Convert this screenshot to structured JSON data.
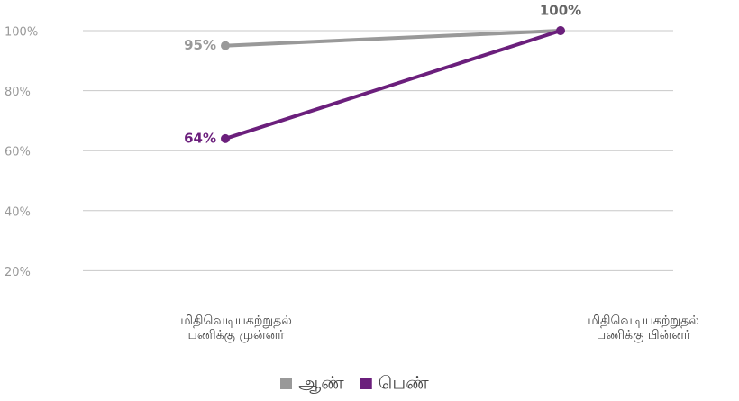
{
  "chart_data": {
    "type": "line",
    "categories": [
      [
        "மிதிவெடியகற்றுதல்",
        "பணிக்கு முன்னர்"
      ],
      [
        "மிதிவெடியகற்றுதல்",
        "பணிக்கு பின்னர்"
      ]
    ],
    "series": [
      {
        "name": "ஆண்",
        "color": "#999999",
        "values": [
          95,
          100
        ],
        "value_labels": [
          "95%",
          "100%"
        ]
      },
      {
        "name": "பெண்",
        "color": "#6b1f7c",
        "values": [
          64,
          100
        ],
        "value_labels": [
          "64%",
          null
        ]
      }
    ],
    "ylim": [
      0,
      100
    ],
    "yticks": [
      {
        "value": 20,
        "label": "20%"
      },
      {
        "value": 40,
        "label": "40%"
      },
      {
        "value": 60,
        "label": "60%"
      },
      {
        "value": 80,
        "label": "80%"
      },
      {
        "value": 100,
        "label": "100%"
      }
    ],
    "grid": true,
    "legend": "bottom"
  }
}
